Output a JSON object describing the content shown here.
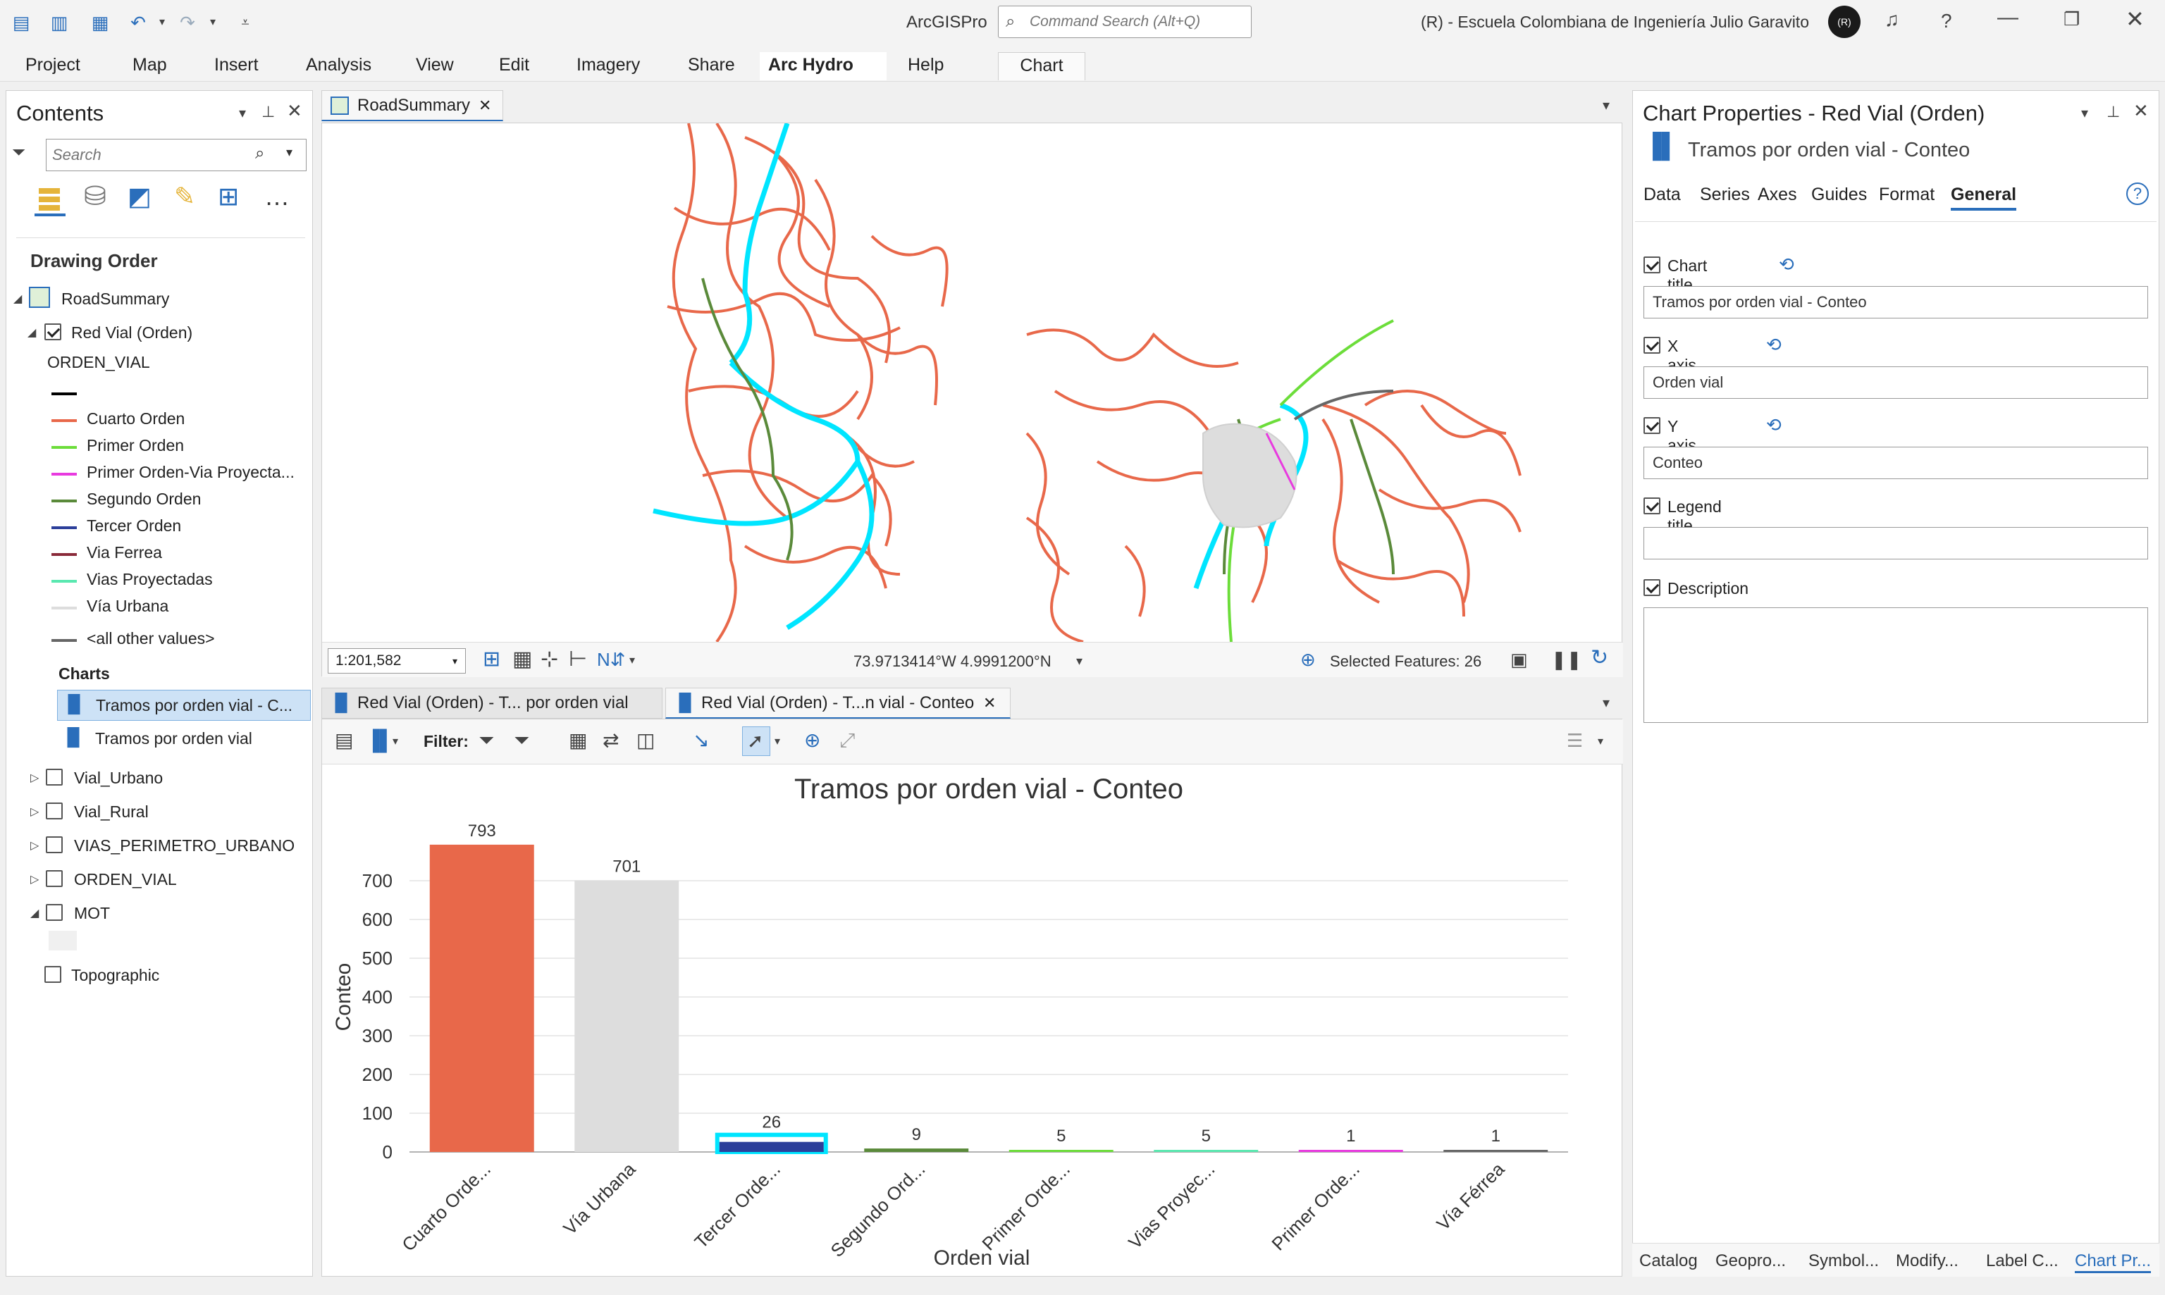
{
  "app": {
    "title": "ArcGISPro",
    "command_search_placeholder": "Command Search (Alt+Q)",
    "org": "(R) - Escuela Colombiana de Ingeniería Julio Garavito",
    "avatar_initials": "(R)"
  },
  "ribbon": {
    "tabs": [
      "Project",
      "Map",
      "Insert",
      "Analysis",
      "View",
      "Edit",
      "Imagery",
      "Share",
      "Arc Hydro",
      "Help",
      "Chart"
    ]
  },
  "contents": {
    "title": "Contents",
    "search_placeholder": "Search",
    "section": "Drawing Order",
    "map_name": "RoadSummary",
    "layer_name": "Red Vial (Orden)",
    "field_name": "ORDEN_VIAL",
    "legend": [
      {
        "label": "",
        "color": "#000000"
      },
      {
        "label": "Cuarto Orden",
        "color": "#e8684a"
      },
      {
        "label": "Primer Orden",
        "color": "#6cdd3a"
      },
      {
        "label": "Primer Orden-Via Proyecta...",
        "color": "#e83adf"
      },
      {
        "label": "Segundo Orden",
        "color": "#5a8a3a"
      },
      {
        "label": "Tercer Orden",
        "color": "#2c3f9a"
      },
      {
        "label": "Via Ferrea",
        "color": "#8a2a3a"
      },
      {
        "label": "Vias Proyectadas",
        "color": "#5ae8b0"
      },
      {
        "label": "Vía Urbana",
        "color": "#dddddd"
      },
      {
        "label": "<all other values>",
        "color": "#666666"
      }
    ],
    "charts_label": "Charts",
    "charts": [
      "Tramos por orden vial - C...",
      "Tramos por orden vial"
    ],
    "other_layers": [
      "Vial_Urbano",
      "Vial_Rural",
      "VIAS_PERIMETRO_URBANO",
      "ORDEN_VIAL",
      "MOT"
    ],
    "basemap": "Topographic"
  },
  "map_view": {
    "tab": "RoadSummary",
    "scale": "1:201,582",
    "coords": "73.9713414°W 4.9991200°N",
    "selected": "Selected Features: 26"
  },
  "chart_view": {
    "tabs": [
      "Red Vial (Orden) - T... por orden vial",
      "Red Vial (Orden) - T...n vial - Conteo"
    ],
    "filter_label": "Filter:"
  },
  "chart_data": {
    "type": "bar",
    "title": "Tramos por orden vial - Conteo",
    "xlabel": "Orden vial",
    "ylabel": "Conteo",
    "categories": [
      "Cuarto Orde...",
      "Vía Urbana",
      "Tercer Orde...",
      "Segundo Ord...",
      "Primer Orde...",
      "Vias Proyec...",
      "Primer Orde...",
      "Vía Férrea"
    ],
    "values": [
      793,
      701,
      26,
      9,
      5,
      5,
      1,
      1
    ],
    "colors": [
      "#e8684a",
      "#dddddd",
      "#2c3f9a",
      "#5a8a3a",
      "#6cdd3a",
      "#5ae8b0",
      "#e83adf",
      "#666666"
    ],
    "yticks": [
      0,
      100,
      200,
      300,
      400,
      500,
      600,
      700
    ],
    "ylim": [
      0,
      800
    ],
    "grid": true,
    "highlight_index": 2
  },
  "properties": {
    "title": "Chart Properties - Red Vial (Orden)",
    "chart_name": "Tramos por orden vial - Conteo",
    "tabs": [
      "Data",
      "Series",
      "Axes",
      "Guides",
      "Format",
      "General"
    ],
    "fields": [
      {
        "label": "Chart title",
        "value": "Tramos por orden vial - Conteo"
      },
      {
        "label": "X axis title",
        "value": "Orden vial"
      },
      {
        "label": "Y axis title",
        "value": "Conteo"
      },
      {
        "label": "Legend title",
        "value": ""
      }
    ],
    "description_label": "Description",
    "bottom_tabs": [
      "Catalog",
      "Geopro...",
      "Symbol...",
      "Modify...",
      "Label C...",
      "Chart Pr..."
    ]
  }
}
